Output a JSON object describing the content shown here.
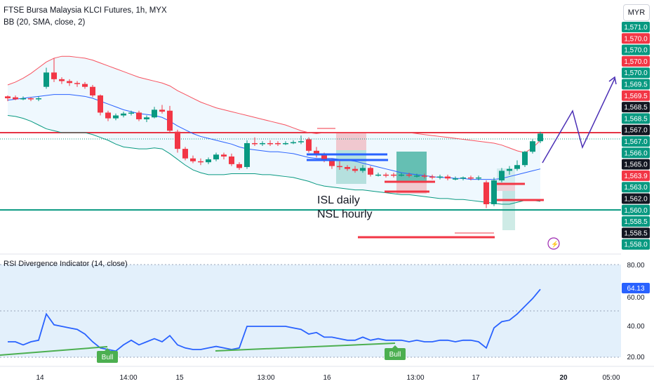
{
  "header": {
    "title": "FTSE Bursa Malaysia KLCI Futures, 1h, MYX",
    "indicator": "BB (20, SMA, close, 2)",
    "currency": "MYR"
  },
  "rsi_panel": {
    "title": "RSI Divergence Indicator (14, close)"
  },
  "annotations": {
    "line1": "ISL daily",
    "line2": "NSL hourly",
    "bull_label": "Bull"
  },
  "colors": {
    "up": "#089981",
    "down": "#f23645",
    "bb_upper": "#f7525f",
    "bb_basis": "#2962ff",
    "bb_lower": "#089981",
    "rsi": "#2962ff",
    "bull": "#4caf50",
    "forecast": "#4b2fb5"
  },
  "chart_data": [
    {
      "type": "candlestick",
      "title": "FTSE Bursa Malaysia KLCI Futures, 1h, MYX",
      "price_axis_labels": [
        "1,571.0",
        "1,570.0",
        "1,570.0",
        "1,570.0",
        "1,570.0",
        "1,569.5",
        "1,569.5",
        "1,568.5",
        "1,568.5",
        "1,567.0",
        "1,567.0",
        "1,566.0",
        "1,565.0",
        "1,563.9",
        "1,563.0",
        "1,562.0",
        "1,560.0",
        "1,558.5",
        "1,558.5",
        "1,558.0"
      ],
      "time_axis_labels": [
        "14",
        "14:00",
        "15",
        "13:00",
        "16",
        "13:00",
        "17",
        "20",
        "05:00"
      ],
      "candles": [
        {
          "o": 1570.8,
          "c": 1570.6,
          "h": 1570.9,
          "l": 1570.3
        },
        {
          "o": 1570.7,
          "c": 1570.5,
          "h": 1570.9,
          "l": 1570.4
        },
        {
          "o": 1570.5,
          "c": 1570.6,
          "h": 1570.8,
          "l": 1570.4
        },
        {
          "o": 1570.6,
          "c": 1570.5,
          "h": 1570.7,
          "l": 1570.3
        },
        {
          "o": 1570.5,
          "c": 1570.6,
          "h": 1570.8,
          "l": 1570.3
        },
        {
          "o": 1571.8,
          "c": 1573.3,
          "h": 1573.8,
          "l": 1571.6
        },
        {
          "o": 1573.3,
          "c": 1572.6,
          "h": 1574.8,
          "l": 1572.3
        },
        {
          "o": 1572.6,
          "c": 1572.4,
          "h": 1572.8,
          "l": 1572.1
        },
        {
          "o": 1572.4,
          "c": 1572.2,
          "h": 1572.6,
          "l": 1571.9
        },
        {
          "o": 1572.2,
          "c": 1572.1,
          "h": 1572.4,
          "l": 1571.8
        },
        {
          "o": 1572.1,
          "c": 1571.8,
          "h": 1572.3,
          "l": 1571.6
        },
        {
          "o": 1571.8,
          "c": 1570.9,
          "h": 1572.0,
          "l": 1570.7
        },
        {
          "o": 1570.9,
          "c": 1569.1,
          "h": 1571.0,
          "l": 1568.8
        },
        {
          "o": 1569.1,
          "c": 1568.5,
          "h": 1569.3,
          "l": 1568.2
        },
        {
          "o": 1568.5,
          "c": 1568.8,
          "h": 1569.0,
          "l": 1568.3
        },
        {
          "o": 1568.8,
          "c": 1569.0,
          "h": 1569.2,
          "l": 1568.6
        },
        {
          "o": 1569.0,
          "c": 1569.1,
          "h": 1569.3,
          "l": 1568.8
        },
        {
          "o": 1569.1,
          "c": 1568.4,
          "h": 1569.3,
          "l": 1568.2
        },
        {
          "o": 1568.4,
          "c": 1568.6,
          "h": 1568.8,
          "l": 1568.1
        },
        {
          "o": 1568.6,
          "c": 1569.4,
          "h": 1569.7,
          "l": 1568.5
        },
        {
          "o": 1569.4,
          "c": 1569.2,
          "h": 1569.9,
          "l": 1569.0
        },
        {
          "o": 1569.3,
          "c": 1567.2,
          "h": 1569.8,
          "l": 1567.0
        },
        {
          "o": 1567.1,
          "c": 1565.3,
          "h": 1567.3,
          "l": 1564.9
        },
        {
          "o": 1565.3,
          "c": 1564.3,
          "h": 1565.5,
          "l": 1564.1
        },
        {
          "o": 1564.3,
          "c": 1564.0,
          "h": 1564.6,
          "l": 1563.8
        },
        {
          "o": 1564.0,
          "c": 1563.9,
          "h": 1564.3,
          "l": 1563.6
        },
        {
          "o": 1563.9,
          "c": 1564.2,
          "h": 1564.4,
          "l": 1563.7
        },
        {
          "o": 1564.2,
          "c": 1564.7,
          "h": 1564.9,
          "l": 1564.0
        },
        {
          "o": 1564.7,
          "c": 1564.5,
          "h": 1564.9,
          "l": 1564.2
        },
        {
          "o": 1564.5,
          "c": 1563.7,
          "h": 1564.8,
          "l": 1563.5
        },
        {
          "o": 1563.7,
          "c": 1563.3,
          "h": 1563.9,
          "l": 1563.1
        },
        {
          "o": 1563.4,
          "c": 1565.9,
          "h": 1566.2,
          "l": 1563.2
        },
        {
          "o": 1565.9,
          "c": 1565.8,
          "h": 1566.5,
          "l": 1565.6
        },
        {
          "o": 1565.8,
          "c": 1565.9,
          "h": 1566.1,
          "l": 1565.6
        },
        {
          "o": 1565.9,
          "c": 1565.8,
          "h": 1566.2,
          "l": 1565.6
        },
        {
          "o": 1565.9,
          "c": 1565.8,
          "h": 1566.1,
          "l": 1565.6
        },
        {
          "o": 1565.8,
          "c": 1565.9,
          "h": 1566.1,
          "l": 1565.7
        },
        {
          "o": 1565.9,
          "c": 1566.0,
          "h": 1566.2,
          "l": 1565.8
        },
        {
          "o": 1566.0,
          "c": 1566.1,
          "h": 1566.7,
          "l": 1565.8
        },
        {
          "o": 1566.3,
          "c": 1565.1,
          "h": 1566.5,
          "l": 1564.9
        },
        {
          "o": 1565.1,
          "c": 1564.7,
          "h": 1565.5,
          "l": 1564.4
        },
        {
          "o": 1564.7,
          "c": 1564.1,
          "h": 1564.9,
          "l": 1563.9
        },
        {
          "o": 1564.1,
          "c": 1563.5,
          "h": 1564.3,
          "l": 1563.2
        },
        {
          "o": 1563.5,
          "c": 1563.4,
          "h": 1564.0,
          "l": 1563.1
        },
        {
          "o": 1563.4,
          "c": 1563.2,
          "h": 1563.6,
          "l": 1563.0
        },
        {
          "o": 1563.2,
          "c": 1563.0,
          "h": 1563.5,
          "l": 1562.8
        },
        {
          "o": 1563.0,
          "c": 1563.3,
          "h": 1563.6,
          "l": 1562.8
        },
        {
          "o": 1563.3,
          "c": 1562.6,
          "h": 1563.5,
          "l": 1562.4
        },
        {
          "o": 1562.6,
          "c": 1562.6,
          "h": 1562.8,
          "l": 1562.4
        },
        {
          "o": 1562.6,
          "c": 1562.5,
          "h": 1562.8,
          "l": 1562.3
        },
        {
          "o": 1562.6,
          "c": 1562.5,
          "h": 1562.8,
          "l": 1562.3
        },
        {
          "o": 1562.5,
          "c": 1562.6,
          "h": 1562.8,
          "l": 1562.4
        },
        {
          "o": 1562.6,
          "c": 1562.5,
          "h": 1562.8,
          "l": 1562.3
        },
        {
          "o": 1562.5,
          "c": 1562.5,
          "h": 1562.7,
          "l": 1562.3
        },
        {
          "o": 1562.5,
          "c": 1562.4,
          "h": 1562.7,
          "l": 1562.2
        },
        {
          "o": 1562.4,
          "c": 1562.3,
          "h": 1562.6,
          "l": 1562.1
        },
        {
          "o": 1562.3,
          "c": 1562.4,
          "h": 1562.6,
          "l": 1562.1
        },
        {
          "o": 1562.4,
          "c": 1562.2,
          "h": 1562.6,
          "l": 1562.0
        },
        {
          "o": 1562.2,
          "c": 1562.2,
          "h": 1562.4,
          "l": 1562.0
        },
        {
          "o": 1562.2,
          "c": 1562.3,
          "h": 1562.4,
          "l": 1562.0
        },
        {
          "o": 1562.3,
          "c": 1562.2,
          "h": 1562.5,
          "l": 1562.0
        },
        {
          "o": 1562.2,
          "c": 1562.3,
          "h": 1562.5,
          "l": 1562.0
        },
        {
          "o": 1561.8,
          "c": 1559.5,
          "h": 1562.0,
          "l": 1559.1
        },
        {
          "o": 1559.5,
          "c": 1562.0,
          "h": 1562.3,
          "l": 1559.3
        },
        {
          "o": 1562.0,
          "c": 1563.0,
          "h": 1563.3,
          "l": 1561.8
        },
        {
          "o": 1563.0,
          "c": 1563.2,
          "h": 1563.5,
          "l": 1562.6
        },
        {
          "o": 1563.2,
          "c": 1563.6,
          "h": 1564.1,
          "l": 1563.0
        },
        {
          "o": 1563.6,
          "c": 1565.0,
          "h": 1565.1,
          "l": 1563.4
        },
        {
          "o": 1565.0,
          "c": 1566.1,
          "h": 1566.3,
          "l": 1564.8
        },
        {
          "o": 1566.1,
          "c": 1566.9,
          "h": 1567.1,
          "l": 1565.9
        }
      ],
      "bollinger": {
        "upper": [
          1572.0,
          1572.3,
          1572.7,
          1573.2,
          1573.8,
          1574.4,
          1574.8,
          1575.0,
          1575.0,
          1574.9,
          1574.8,
          1574.6,
          1574.3,
          1574.0,
          1573.7,
          1573.4,
          1573.1,
          1572.8,
          1572.6,
          1572.4,
          1572.2,
          1571.9,
          1571.4,
          1571.0,
          1570.6,
          1570.2,
          1569.9,
          1569.6,
          1569.4,
          1569.2,
          1569.0,
          1568.8,
          1568.6,
          1568.4,
          1568.2,
          1568.0,
          1567.8,
          1567.5,
          1567.2,
          1567.0,
          1566.9,
          1567.0,
          1567.0,
          1567.0,
          1567.0,
          1567.0,
          1567.0,
          1567.0,
          1567.0,
          1567.0,
          1567.0,
          1567.0,
          1567.0,
          1566.9,
          1566.8,
          1566.7,
          1566.6,
          1566.5,
          1566.4,
          1566.3,
          1566.2,
          1566.1,
          1566.0,
          1565.9,
          1565.7,
          1565.4,
          1565.1,
          1564.9,
          1565.4,
          1566.2
        ],
        "basis": [
          1570.4,
          1570.5,
          1570.6,
          1570.7,
          1570.8,
          1570.9,
          1571.0,
          1571.0,
          1571.0,
          1570.9,
          1570.8,
          1570.6,
          1570.3,
          1570.0,
          1569.7,
          1569.4,
          1569.2,
          1569.0,
          1568.9,
          1568.8,
          1568.6,
          1568.2,
          1567.7,
          1567.3,
          1566.9,
          1566.6,
          1566.4,
          1566.2,
          1566.0,
          1565.8,
          1565.5,
          1565.3,
          1565.2,
          1565.1,
          1565.0,
          1565.0,
          1564.9,
          1564.8,
          1564.6,
          1564.4,
          1564.3,
          1564.3,
          1564.3,
          1564.2,
          1564.1,
          1564.0,
          1563.8,
          1563.6,
          1563.4,
          1563.2,
          1563.0,
          1562.8,
          1562.7,
          1562.6,
          1562.5,
          1562.4,
          1562.3,
          1562.3,
          1562.2,
          1562.2,
          1562.1,
          1562.1,
          1562.1,
          1562.1,
          1562.2,
          1562.4,
          1562.6,
          1562.8,
          1563.0,
          1563.2
        ],
        "lower": [
          1568.8,
          1568.7,
          1568.5,
          1568.2,
          1567.8,
          1567.4,
          1567.2,
          1567.0,
          1567.0,
          1567.0,
          1567.0,
          1566.8,
          1566.5,
          1566.2,
          1565.8,
          1565.5,
          1565.4,
          1565.3,
          1565.3,
          1565.4,
          1565.3,
          1564.8,
          1564.2,
          1563.6,
          1563.1,
          1562.8,
          1562.6,
          1562.6,
          1562.6,
          1562.7,
          1562.7,
          1562.7,
          1562.7,
          1562.6,
          1562.6,
          1562.5,
          1562.4,
          1562.3,
          1562.1,
          1561.9,
          1561.6,
          1561.4,
          1561.3,
          1561.2,
          1561.1,
          1561.0,
          1561.0,
          1560.9,
          1560.8,
          1560.7,
          1560.6,
          1560.5,
          1560.5,
          1560.4,
          1560.3,
          1560.2,
          1560.1,
          1560.1,
          1560.0,
          1560.0,
          1559.9,
          1559.8,
          1559.7,
          1559.6,
          1559.5,
          1559.5,
          1559.7,
          1559.9,
          1559.9,
          1559.8
        ]
      },
      "rsi": [
        30,
        30,
        28,
        30,
        31,
        48,
        41,
        40,
        39,
        38,
        35,
        30,
        26,
        25,
        24,
        28,
        31,
        28,
        30,
        32,
        30,
        34,
        28,
        26,
        25,
        25,
        26,
        27,
        26,
        25,
        26,
        40,
        40,
        40,
        40,
        40,
        40,
        39,
        38,
        35,
        36,
        33,
        33,
        32,
        31,
        31,
        33,
        31,
        32,
        31,
        31,
        31,
        30,
        31,
        30,
        30,
        31,
        31,
        30,
        31,
        31,
        30,
        26,
        39,
        43,
        44,
        48,
        53,
        58,
        64
      ],
      "levels": [
        1567.0,
        1558.9
      ],
      "rsi_axis_labels": [
        "80.00",
        "60.00",
        "40.00",
        "20.00"
      ],
      "rsi_current": "64.13"
    }
  ]
}
